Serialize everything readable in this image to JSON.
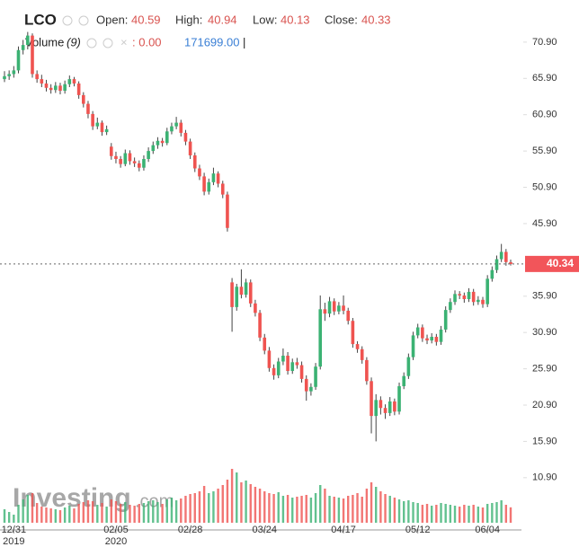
{
  "chart_data": {
    "type": "candlestick",
    "header": {
      "symbol": "LCO",
      "open_label": "Open:",
      "open": "40.59",
      "high_label": "High:",
      "high": "40.94",
      "low_label": "Low:",
      "low": "40.13",
      "close_label": "Close:",
      "close": "40.33",
      "volume_label": "Volume",
      "volume_period": "(9)",
      "volume_zero": ": 0.00",
      "volume_value": "171699.00",
      "cursor": "|"
    },
    "watermark": [
      "Investing",
      ".com"
    ],
    "up_color": "#3bb273",
    "down_color": "#ef5350",
    "ylim": [
      3.7,
      76.7
    ],
    "yticks": [
      {
        "value": 10.9,
        "label": "10.90"
      },
      {
        "value": 15.9,
        "label": "15.90"
      },
      {
        "value": 20.9,
        "label": "20.90"
      },
      {
        "value": 25.9,
        "label": "25.90"
      },
      {
        "value": 30.9,
        "label": "30.90"
      },
      {
        "value": 35.9,
        "label": "35.90"
      },
      {
        "value": 45.9,
        "label": "45.90"
      },
      {
        "value": 50.9,
        "label": "50.90"
      },
      {
        "value": 55.9,
        "label": "55.90"
      },
      {
        "value": 60.9,
        "label": "60.90"
      },
      {
        "value": 65.9,
        "label": "65.90"
      },
      {
        "value": 70.9,
        "label": "70.90"
      }
    ],
    "price_line": {
      "value": 40.34,
      "label": "40.34"
    },
    "x_labels": [
      {
        "index": 2,
        "label": "12/31",
        "sub": "2019"
      },
      {
        "index": 24,
        "label": "02/05",
        "sub": "2020"
      },
      {
        "index": 40,
        "label": "02/28"
      },
      {
        "index": 56,
        "label": "03/24"
      },
      {
        "index": 73,
        "label": "04/17"
      },
      {
        "index": 89,
        "label": "05/12"
      },
      {
        "index": 104,
        "label": "06/04"
      }
    ],
    "vlim": [
      0,
      700000
    ],
    "ohlc": [
      [
        65.8,
        66.9,
        65.4,
        66.2
      ],
      [
        66.2,
        67.0,
        65.7,
        66.5
      ],
      [
        66.5,
        67.6,
        66.0,
        67.0
      ],
      [
        67.0,
        70.3,
        66.6,
        69.8
      ],
      [
        69.8,
        71.2,
        69.2,
        70.5
      ],
      [
        70.5,
        72.3,
        69.9,
        71.8
      ],
      [
        71.8,
        72.1,
        66.0,
        66.5
      ],
      [
        66.5,
        67.0,
        65.3,
        65.8
      ],
      [
        65.8,
        66.4,
        64.7,
        65.2
      ],
      [
        65.2,
        65.7,
        64.1,
        64.6
      ],
      [
        64.6,
        65.1,
        63.8,
        64.3
      ],
      [
        64.3,
        65.4,
        63.9,
        64.9
      ],
      [
        64.9,
        65.3,
        63.7,
        64.2
      ],
      [
        64.2,
        65.6,
        63.8,
        65.1
      ],
      [
        65.1,
        66.3,
        64.7,
        65.8
      ],
      [
        65.8,
        66.1,
        64.8,
        65.2
      ],
      [
        65.2,
        65.5,
        63.1,
        63.6
      ],
      [
        63.6,
        64.0,
        61.9,
        62.4
      ],
      [
        62.4,
        62.8,
        60.4,
        61.0
      ],
      [
        61.0,
        61.4,
        58.8,
        59.3
      ],
      [
        59.3,
        60.5,
        58.9,
        59.8
      ],
      [
        59.8,
        60.1,
        58.0,
        58.5
      ],
      [
        58.5,
        59.4,
        58.1,
        58.9
      ],
      [
        56.5,
        57.0,
        54.7,
        55.2
      ],
      [
        55.2,
        55.8,
        54.2,
        54.8
      ],
      [
        54.8,
        55.2,
        53.6,
        54.1
      ],
      [
        54.1,
        56.1,
        53.8,
        55.6
      ],
      [
        55.6,
        56.0,
        54.0,
        54.5
      ],
      [
        54.5,
        55.0,
        53.7,
        54.2
      ],
      [
        54.2,
        54.6,
        53.1,
        53.6
      ],
      [
        53.6,
        55.3,
        53.2,
        54.8
      ],
      [
        54.8,
        56.4,
        54.4,
        55.9
      ],
      [
        55.9,
        57.2,
        55.5,
        56.7
      ],
      [
        56.7,
        57.8,
        56.2,
        57.3
      ],
      [
        57.3,
        57.7,
        56.5,
        57.0
      ],
      [
        57.0,
        59.1,
        56.7,
        58.6
      ],
      [
        58.6,
        59.8,
        58.2,
        59.3
      ],
      [
        59.3,
        60.6,
        58.9,
        59.8
      ],
      [
        59.8,
        60.2,
        57.9,
        58.4
      ],
      [
        58.4,
        58.8,
        56.7,
        57.2
      ],
      [
        57.2,
        57.6,
        54.8,
        55.3
      ],
      [
        55.3,
        55.7,
        53.0,
        53.5
      ],
      [
        53.5,
        54.0,
        51.9,
        52.4
      ],
      [
        52.4,
        52.9,
        49.8,
        50.3
      ],
      [
        50.3,
        52.1,
        49.9,
        51.6
      ],
      [
        51.6,
        53.6,
        51.2,
        52.8
      ],
      [
        52.8,
        53.1,
        50.9,
        51.4
      ],
      [
        51.4,
        51.8,
        49.4,
        49.9
      ],
      [
        49.9,
        50.3,
        44.8,
        45.3
      ],
      [
        37.8,
        38.4,
        31.0,
        34.4
      ],
      [
        34.4,
        37.6,
        33.9,
        37.2
      ],
      [
        37.2,
        39.6,
        35.6,
        36.1
      ],
      [
        36.1,
        38.3,
        35.7,
        37.8
      ],
      [
        37.8,
        38.2,
        34.4,
        34.9
      ],
      [
        34.9,
        35.4,
        33.1,
        33.6
      ],
      [
        33.6,
        34.0,
        29.7,
        30.2
      ],
      [
        30.2,
        30.7,
        27.9,
        28.4
      ],
      [
        28.4,
        28.9,
        25.5,
        26.0
      ],
      [
        26.0,
        26.5,
        24.4,
        25.0
      ],
      [
        25.0,
        27.4,
        24.6,
        26.9
      ],
      [
        26.9,
        28.7,
        26.4,
        27.7
      ],
      [
        27.7,
        28.2,
        25.1,
        25.6
      ],
      [
        25.6,
        27.3,
        25.2,
        26.8
      ],
      [
        26.8,
        27.4,
        25.9,
        26.4
      ],
      [
        26.4,
        26.9,
        24.0,
        24.5
      ],
      [
        24.5,
        25.0,
        21.5,
        22.8
      ],
      [
        22.8,
        23.9,
        22.2,
        23.4
      ],
      [
        23.4,
        26.7,
        23.0,
        26.2
      ],
      [
        26.2,
        36.0,
        25.8,
        34.1
      ],
      [
        34.1,
        35.0,
        32.5,
        33.5
      ],
      [
        33.5,
        35.8,
        33.0,
        35.2
      ],
      [
        35.2,
        35.6,
        33.3,
        33.8
      ],
      [
        33.8,
        35.1,
        33.4,
        34.6
      ],
      [
        34.6,
        36.0,
        33.4,
        33.9
      ],
      [
        33.9,
        34.3,
        32.0,
        32.5
      ],
      [
        32.5,
        32.9,
        28.8,
        29.3
      ],
      [
        29.3,
        29.7,
        28.1,
        28.6
      ],
      [
        28.6,
        29.0,
        26.6,
        27.1
      ],
      [
        27.1,
        27.5,
        23.7,
        24.2
      ],
      [
        24.2,
        24.7,
        17.0,
        19.4
      ],
      [
        19.4,
        22.4,
        15.9,
        21.6
      ],
      [
        21.6,
        22.1,
        19.6,
        20.5
      ],
      [
        20.5,
        21.0,
        19.0,
        19.8
      ],
      [
        19.8,
        22.0,
        19.4,
        21.4
      ],
      [
        21.4,
        21.8,
        19.5,
        20.0
      ],
      [
        20.0,
        24.0,
        19.6,
        23.5
      ],
      [
        23.5,
        25.4,
        23.1,
        24.9
      ],
      [
        24.9,
        28.0,
        24.5,
        27.5
      ],
      [
        27.5,
        31.0,
        27.1,
        30.5
      ],
      [
        30.5,
        32.1,
        30.1,
        31.6
      ],
      [
        31.6,
        32.0,
        29.6,
        30.1
      ],
      [
        30.1,
        30.6,
        29.3,
        29.8
      ],
      [
        29.8,
        30.8,
        29.4,
        30.3
      ],
      [
        30.3,
        30.7,
        29.1,
        29.6
      ],
      [
        29.6,
        31.8,
        29.2,
        31.3
      ],
      [
        31.3,
        34.5,
        30.9,
        34.0
      ],
      [
        34.0,
        35.6,
        33.6,
        35.1
      ],
      [
        35.1,
        36.7,
        34.7,
        36.2
      ],
      [
        36.2,
        36.6,
        35.5,
        36.0
      ],
      [
        36.0,
        36.4,
        35.0,
        35.5
      ],
      [
        35.5,
        37.0,
        35.1,
        36.5
      ],
      [
        36.5,
        36.9,
        34.6,
        35.1
      ],
      [
        35.1,
        35.9,
        34.7,
        35.4
      ],
      [
        35.4,
        35.8,
        34.3,
        34.8
      ],
      [
        34.8,
        38.8,
        34.4,
        38.3
      ],
      [
        38.3,
        40.0,
        37.9,
        39.5
      ],
      [
        39.5,
        41.5,
        39.1,
        41.0
      ],
      [
        41.0,
        43.1,
        40.6,
        42.0
      ],
      [
        42.0,
        42.4,
        40.1,
        40.6
      ],
      [
        40.59,
        40.94,
        40.13,
        40.33
      ]
    ],
    "volume": [
      150000,
      120000,
      90000,
      200000,
      260000,
      310000,
      330000,
      220000,
      180000,
      170000,
      160000,
      150000,
      140000,
      170000,
      190000,
      160000,
      210000,
      230000,
      250000,
      240000,
      200000,
      220000,
      180000,
      260000,
      240000,
      210000,
      230000,
      200000,
      190000,
      210000,
      220000,
      240000,
      250000,
      230000,
      210000,
      260000,
      280000,
      250000,
      270000,
      300000,
      320000,
      330000,
      350000,
      410000,
      330000,
      350000,
      380000,
      420000,
      480000,
      600000,
      560000,
      450000,
      470000,
      430000,
      400000,
      380000,
      350000,
      330000,
      320000,
      340000,
      300000,
      310000,
      280000,
      290000,
      300000,
      310000,
      280000,
      330000,
      420000,
      380000,
      300000,
      290000,
      280000,
      270000,
      300000,
      310000,
      330000,
      290000,
      380000,
      450000,
      400000,
      350000,
      320000,
      300000,
      280000,
      260000,
      240000,
      250000,
      230000,
      220000,
      200000,
      210000,
      190000,
      200000,
      220000,
      210000,
      200000,
      190000,
      180000,
      200000,
      190000,
      200000,
      180000,
      170000,
      210000,
      220000,
      230000,
      250000,
      200000,
      171699
    ]
  }
}
